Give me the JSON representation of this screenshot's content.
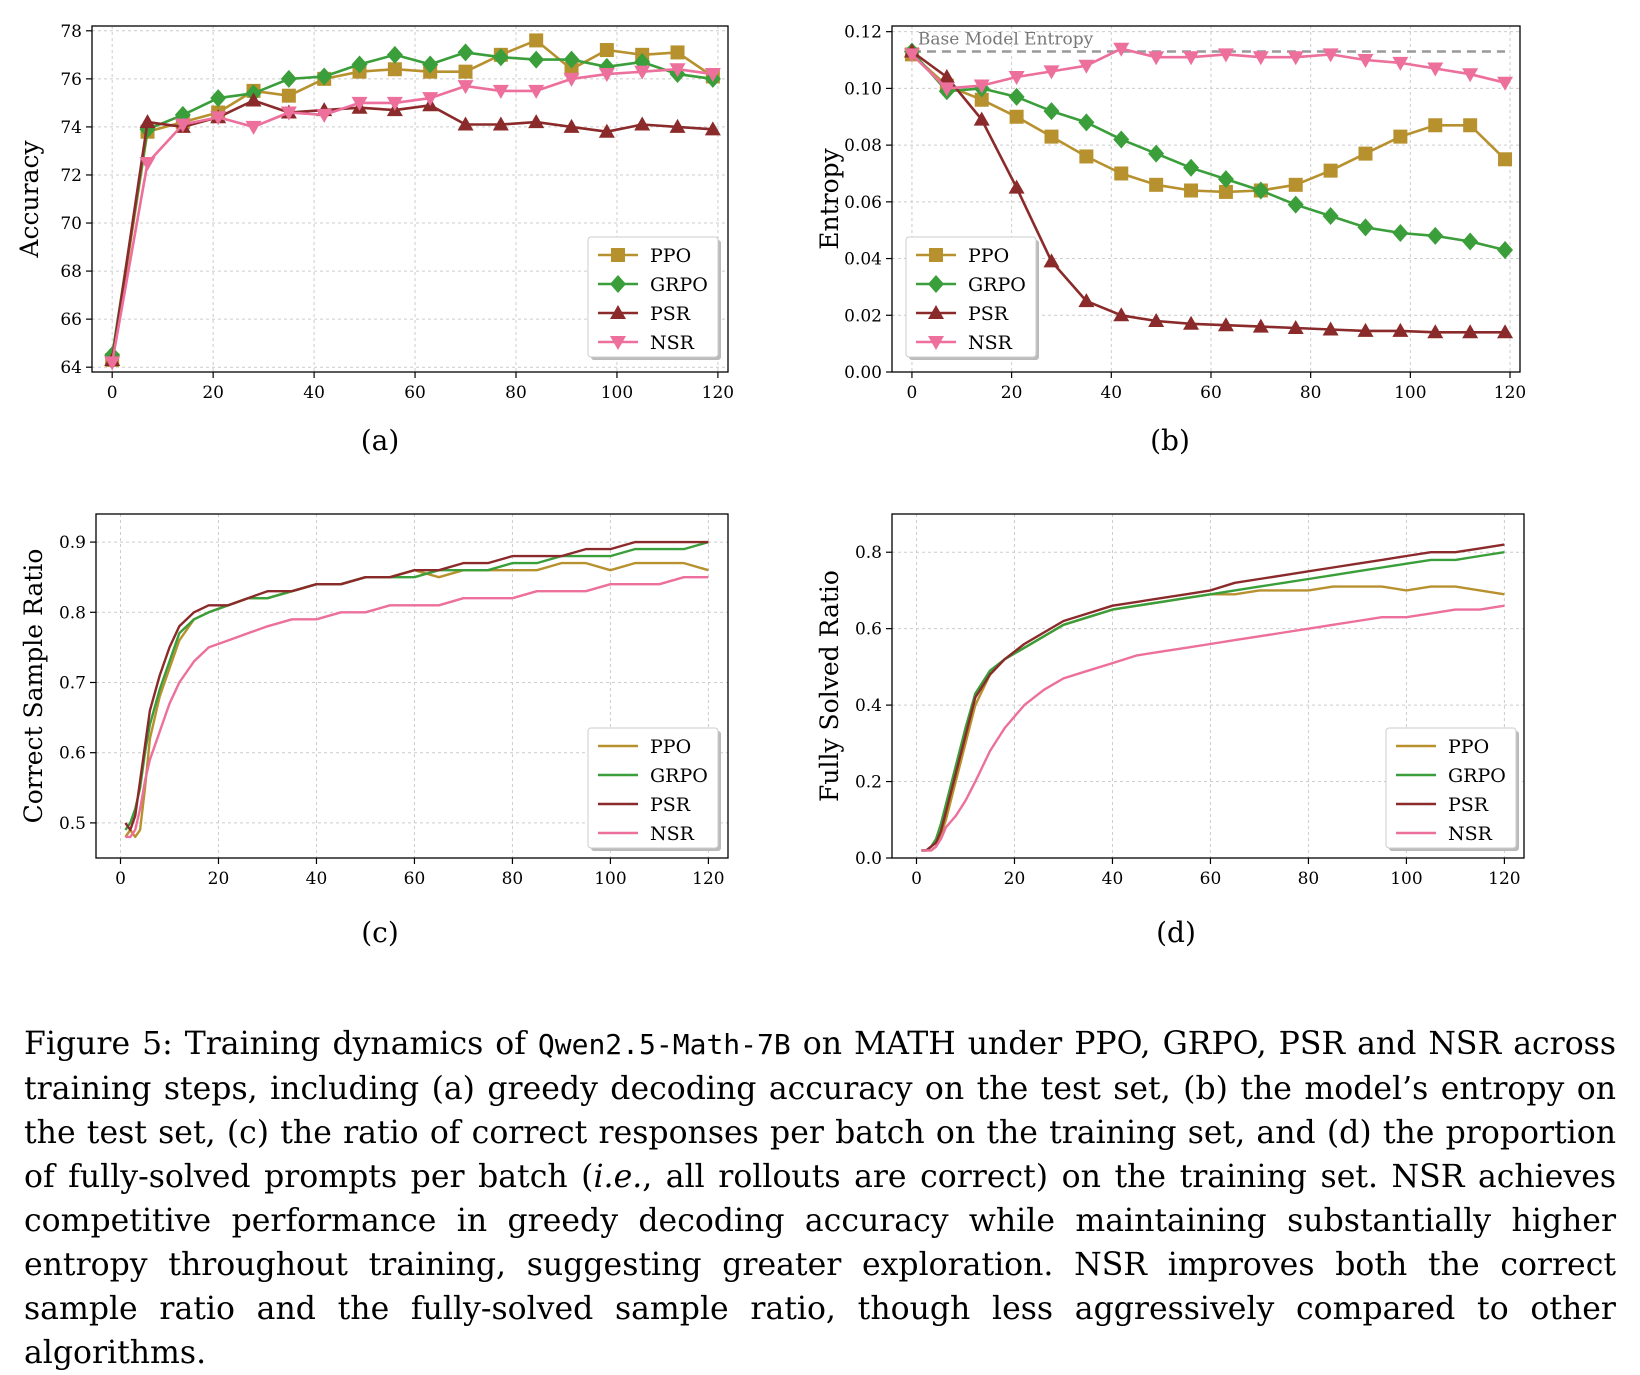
{
  "colors": {
    "PPO": "#b8912f",
    "GRPO": "#3a9e3a",
    "PSR": "#8b2a2a",
    "NSR": "#ec6f9c",
    "grid": "#cccccc",
    "baseline": "#999999"
  },
  "chart_data": [
    {
      "id": "a",
      "type": "line",
      "markers": true,
      "ylabel": "Accuracy",
      "xlabel": "",
      "xlim": [
        -4,
        122
      ],
      "ylim": [
        63.8,
        78.2
      ],
      "xticks": [
        0,
        20,
        40,
        60,
        80,
        100,
        120
      ],
      "yticks": [
        64,
        66,
        68,
        70,
        72,
        74,
        76,
        78
      ],
      "ytick_format": "int",
      "grid": true,
      "legend": "lower-right",
      "sublabel": "(a)",
      "series": [
        {
          "name": "PPO",
          "marker": "square",
          "x": [
            0,
            7,
            14,
            21,
            28,
            35,
            42,
            49,
            56,
            63,
            70,
            77,
            84,
            91,
            98,
            105,
            112,
            119
          ],
          "y": [
            64.3,
            73.8,
            74.2,
            74.6,
            75.5,
            75.3,
            76.0,
            76.3,
            76.4,
            76.3,
            76.3,
            77.0,
            77.6,
            76.4,
            77.2,
            77.0,
            77.1,
            76.1
          ]
        },
        {
          "name": "GRPO",
          "marker": "diamond",
          "x": [
            0,
            7,
            14,
            21,
            28,
            35,
            42,
            49,
            56,
            63,
            70,
            77,
            84,
            91,
            98,
            105,
            112,
            119
          ],
          "y": [
            64.5,
            73.9,
            74.5,
            75.2,
            75.4,
            76.0,
            76.1,
            76.6,
            77.0,
            76.6,
            77.1,
            76.9,
            76.8,
            76.8,
            76.5,
            76.7,
            76.2,
            76.0
          ]
        },
        {
          "name": "PSR",
          "marker": "triangle-up",
          "x": [
            0,
            7,
            14,
            21,
            28,
            35,
            42,
            49,
            56,
            63,
            70,
            77,
            84,
            91,
            98,
            105,
            112,
            119
          ],
          "y": [
            64.3,
            74.2,
            74.0,
            74.4,
            75.1,
            74.6,
            74.7,
            74.8,
            74.7,
            74.9,
            74.1,
            74.1,
            74.2,
            74.0,
            73.8,
            74.1,
            74.0,
            73.9
          ]
        },
        {
          "name": "NSR",
          "marker": "triangle-down",
          "x": [
            0,
            7,
            14,
            21,
            28,
            35,
            42,
            49,
            56,
            63,
            70,
            77,
            84,
            91,
            98,
            105,
            112,
            119
          ],
          "y": [
            64.2,
            72.5,
            74.1,
            74.4,
            74.0,
            74.6,
            74.5,
            75.0,
            75.0,
            75.2,
            75.7,
            75.5,
            75.5,
            76.0,
            76.2,
            76.3,
            76.4,
            76.2
          ]
        }
      ]
    },
    {
      "id": "b",
      "type": "line",
      "markers": true,
      "ylabel": "Entropy",
      "xlabel": "",
      "xlim": [
        -4,
        122
      ],
      "ylim": [
        0,
        0.122
      ],
      "xticks": [
        0,
        20,
        40,
        60,
        80,
        100,
        120
      ],
      "yticks": [
        0.0,
        0.02,
        0.04,
        0.06,
        0.08,
        0.1,
        0.12
      ],
      "ytick_format": "2",
      "grid": true,
      "legend": "lower-left",
      "sublabel": "(b)",
      "reference_line": {
        "y": 0.113,
        "label": "Base Model Entropy"
      },
      "series": [
        {
          "name": "PPO",
          "marker": "square",
          "x": [
            0,
            7,
            14,
            21,
            28,
            35,
            42,
            49,
            56,
            63,
            70,
            77,
            84,
            91,
            98,
            105,
            112,
            119
          ],
          "y": [
            0.112,
            0.101,
            0.096,
            0.09,
            0.083,
            0.076,
            0.07,
            0.066,
            0.064,
            0.0635,
            0.064,
            0.066,
            0.071,
            0.077,
            0.083,
            0.087,
            0.087,
            0.075
          ]
        },
        {
          "name": "GRPO",
          "marker": "diamond",
          "x": [
            0,
            7,
            14,
            21,
            28,
            35,
            42,
            49,
            56,
            63,
            70,
            77,
            84,
            91,
            98,
            105,
            112,
            119
          ],
          "y": [
            0.113,
            0.099,
            0.1,
            0.097,
            0.092,
            0.088,
            0.082,
            0.077,
            0.072,
            0.068,
            0.064,
            0.059,
            0.055,
            0.051,
            0.049,
            0.048,
            0.046,
            0.043
          ]
        },
        {
          "name": "PSR",
          "marker": "triangle-up",
          "x": [
            0,
            7,
            14,
            21,
            28,
            35,
            42,
            49,
            56,
            63,
            70,
            77,
            84,
            91,
            98,
            105,
            112,
            119
          ],
          "y": [
            0.113,
            0.104,
            0.089,
            0.065,
            0.039,
            0.025,
            0.02,
            0.018,
            0.017,
            0.0165,
            0.016,
            0.0155,
            0.015,
            0.0145,
            0.0145,
            0.014,
            0.014,
            0.014
          ]
        },
        {
          "name": "NSR",
          "marker": "triangle-down",
          "x": [
            0,
            7,
            14,
            21,
            28,
            35,
            42,
            49,
            56,
            63,
            70,
            77,
            84,
            91,
            98,
            105,
            112,
            119
          ],
          "y": [
            0.112,
            0.1,
            0.101,
            0.104,
            0.106,
            0.108,
            0.114,
            0.111,
            0.111,
            0.112,
            0.111,
            0.111,
            0.112,
            0.11,
            0.109,
            0.107,
            0.105,
            0.102
          ]
        }
      ]
    },
    {
      "id": "c",
      "type": "line",
      "markers": false,
      "ylabel": "Correct Sample Ratio",
      "xlabel": "",
      "xlim": [
        -5,
        124
      ],
      "ylim": [
        0.45,
        0.94
      ],
      "xticks": [
        0,
        20,
        40,
        60,
        80,
        100,
        120
      ],
      "yticks": [
        0.5,
        0.6,
        0.7,
        0.8,
        0.9
      ],
      "ytick_format": "1",
      "grid": true,
      "legend": "lower-right",
      "sublabel": "(c)",
      "series": [
        {
          "name": "PPO",
          "x": [
            1,
            2,
            3,
            4,
            5,
            6,
            8,
            10,
            12,
            15,
            18,
            22,
            26,
            30,
            35,
            40,
            45,
            50,
            55,
            60,
            65,
            70,
            75,
            80,
            85,
            90,
            95,
            100,
            105,
            110,
            115,
            120
          ],
          "y": [
            0.48,
            0.49,
            0.48,
            0.49,
            0.55,
            0.62,
            0.68,
            0.72,
            0.76,
            0.79,
            0.8,
            0.81,
            0.82,
            0.82,
            0.83,
            0.84,
            0.84,
            0.85,
            0.85,
            0.86,
            0.85,
            0.86,
            0.86,
            0.86,
            0.86,
            0.87,
            0.87,
            0.86,
            0.87,
            0.87,
            0.87,
            0.86
          ]
        },
        {
          "name": "GRPO",
          "x": [
            1,
            2,
            3,
            4,
            5,
            6,
            8,
            10,
            12,
            15,
            18,
            22,
            26,
            30,
            35,
            40,
            45,
            50,
            55,
            60,
            65,
            70,
            75,
            80,
            85,
            90,
            95,
            100,
            105,
            110,
            115,
            120
          ],
          "y": [
            0.49,
            0.5,
            0.52,
            0.55,
            0.6,
            0.64,
            0.69,
            0.73,
            0.77,
            0.79,
            0.8,
            0.81,
            0.82,
            0.82,
            0.83,
            0.84,
            0.84,
            0.85,
            0.85,
            0.85,
            0.86,
            0.86,
            0.86,
            0.87,
            0.87,
            0.88,
            0.88,
            0.88,
            0.89,
            0.89,
            0.89,
            0.9
          ]
        },
        {
          "name": "PSR",
          "x": [
            1,
            2,
            3,
            4,
            5,
            6,
            8,
            10,
            12,
            15,
            18,
            22,
            26,
            30,
            35,
            40,
            45,
            50,
            55,
            60,
            65,
            70,
            75,
            80,
            85,
            90,
            95,
            100,
            105,
            110,
            115,
            120
          ],
          "y": [
            0.5,
            0.49,
            0.51,
            0.56,
            0.61,
            0.66,
            0.71,
            0.75,
            0.78,
            0.8,
            0.81,
            0.81,
            0.82,
            0.83,
            0.83,
            0.84,
            0.84,
            0.85,
            0.85,
            0.86,
            0.86,
            0.87,
            0.87,
            0.88,
            0.88,
            0.88,
            0.89,
            0.89,
            0.9,
            0.9,
            0.9,
            0.9
          ]
        },
        {
          "name": "NSR",
          "x": [
            1,
            2,
            3,
            4,
            5,
            6,
            8,
            10,
            12,
            15,
            18,
            22,
            26,
            30,
            35,
            40,
            45,
            50,
            55,
            60,
            65,
            70,
            75,
            80,
            85,
            90,
            95,
            100,
            105,
            110,
            115,
            120
          ],
          "y": [
            0.48,
            0.48,
            0.49,
            0.52,
            0.56,
            0.59,
            0.63,
            0.67,
            0.7,
            0.73,
            0.75,
            0.76,
            0.77,
            0.78,
            0.79,
            0.79,
            0.8,
            0.8,
            0.81,
            0.81,
            0.81,
            0.82,
            0.82,
            0.82,
            0.83,
            0.83,
            0.83,
            0.84,
            0.84,
            0.84,
            0.85,
            0.85
          ]
        }
      ]
    },
    {
      "id": "d",
      "type": "line",
      "markers": false,
      "ylabel": "Fully Solved Ratio",
      "xlabel": "",
      "xlim": [
        -5,
        124
      ],
      "ylim": [
        0.0,
        0.9
      ],
      "xticks": [
        0,
        20,
        40,
        60,
        80,
        100,
        120
      ],
      "yticks": [
        0.0,
        0.2,
        0.4,
        0.6,
        0.8
      ],
      "ytick_format": "1",
      "grid": true,
      "legend": "lower-right",
      "sublabel": "(d)",
      "series": [
        {
          "name": "PPO",
          "x": [
            1,
            2,
            3,
            4,
            5,
            6,
            8,
            10,
            12,
            15,
            18,
            22,
            26,
            30,
            35,
            40,
            45,
            50,
            55,
            60,
            65,
            70,
            75,
            80,
            85,
            90,
            95,
            100,
            105,
            110,
            115,
            120
          ],
          "y": [
            0.02,
            0.02,
            0.02,
            0.03,
            0.06,
            0.1,
            0.2,
            0.3,
            0.4,
            0.48,
            0.52,
            0.55,
            0.58,
            0.61,
            0.63,
            0.65,
            0.66,
            0.67,
            0.68,
            0.69,
            0.69,
            0.7,
            0.7,
            0.7,
            0.71,
            0.71,
            0.71,
            0.7,
            0.71,
            0.71,
            0.7,
            0.69
          ]
        },
        {
          "name": "GRPO",
          "x": [
            1,
            2,
            3,
            4,
            5,
            6,
            8,
            10,
            12,
            15,
            18,
            22,
            26,
            30,
            35,
            40,
            45,
            50,
            55,
            60,
            65,
            70,
            75,
            80,
            85,
            90,
            95,
            100,
            105,
            110,
            115,
            120
          ],
          "y": [
            0.02,
            0.02,
            0.03,
            0.05,
            0.09,
            0.14,
            0.24,
            0.34,
            0.43,
            0.49,
            0.52,
            0.55,
            0.58,
            0.61,
            0.63,
            0.65,
            0.66,
            0.67,
            0.68,
            0.69,
            0.7,
            0.71,
            0.72,
            0.73,
            0.74,
            0.75,
            0.76,
            0.77,
            0.78,
            0.78,
            0.79,
            0.8
          ]
        },
        {
          "name": "PSR",
          "x": [
            1,
            2,
            3,
            4,
            5,
            6,
            8,
            10,
            12,
            15,
            18,
            22,
            26,
            30,
            35,
            40,
            45,
            50,
            55,
            60,
            65,
            70,
            75,
            80,
            85,
            90,
            95,
            100,
            105,
            110,
            115,
            120
          ],
          "y": [
            0.02,
            0.02,
            0.03,
            0.04,
            0.07,
            0.12,
            0.22,
            0.32,
            0.42,
            0.48,
            0.52,
            0.56,
            0.59,
            0.62,
            0.64,
            0.66,
            0.67,
            0.68,
            0.69,
            0.7,
            0.72,
            0.73,
            0.74,
            0.75,
            0.76,
            0.77,
            0.78,
            0.79,
            0.8,
            0.8,
            0.81,
            0.82
          ]
        },
        {
          "name": "NSR",
          "x": [
            1,
            2,
            3,
            4,
            5,
            6,
            8,
            10,
            12,
            15,
            18,
            22,
            26,
            30,
            35,
            40,
            45,
            50,
            55,
            60,
            65,
            70,
            75,
            80,
            85,
            90,
            95,
            100,
            105,
            110,
            115,
            120
          ],
          "y": [
            0.02,
            0.02,
            0.02,
            0.03,
            0.05,
            0.08,
            0.11,
            0.15,
            0.2,
            0.28,
            0.34,
            0.4,
            0.44,
            0.47,
            0.49,
            0.51,
            0.53,
            0.54,
            0.55,
            0.56,
            0.57,
            0.58,
            0.59,
            0.6,
            0.61,
            0.62,
            0.63,
            0.63,
            0.64,
            0.65,
            0.65,
            0.66
          ]
        }
      ]
    }
  ],
  "caption": {
    "p1": "Figure 5: Training dynamics of ",
    "model": "Qwen2.5-Math-7B",
    "p2": " on MATH under PPO, GRPO, PSR and NSR across training steps, including (a) greedy decoding accuracy on the test set, (b) the model’s entropy on the test set, (c) the ratio of correct responses per batch on the training set, and (d) the proportion of fully-solved prompts per batch (",
    "ie": "i.e.",
    "p3": ", all rollouts are correct) on the training set. NSR achieves competitive performance in greedy decoding accuracy while maintaining substantially higher entropy throughout training, suggesting greater exploration. NSR improves both the correct sample ratio and the fully-solved sample ratio, though less aggressively compared to other algorithms."
  }
}
